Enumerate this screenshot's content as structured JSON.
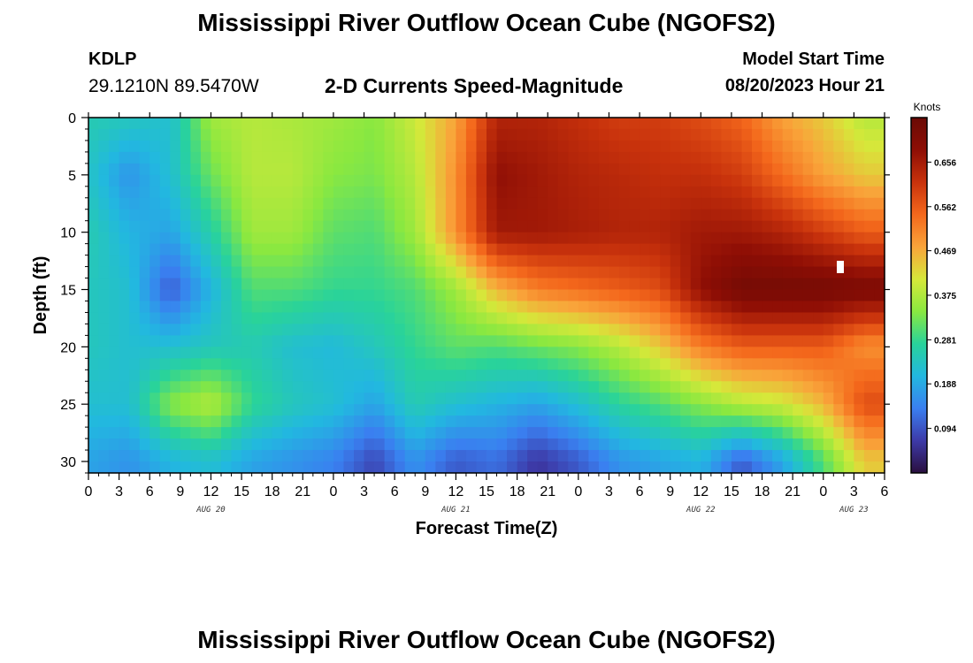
{
  "header": {
    "title": "Mississippi River Outflow Ocean Cube (NGOFS2)",
    "station_id": "KDLP",
    "station_coords": "29.1210N  89.5470W",
    "product": "2-D Currents Speed-Magnitude",
    "model_start_label": "Model Start Time",
    "model_start_value": "08/20/2023 Hour 21"
  },
  "footer": {
    "title": "Mississippi River Outflow Ocean Cube (NGOFS2)"
  },
  "chart_data": {
    "type": "heatmap",
    "xlabel": "Forecast Time(Z)",
    "ylabel": "Depth (ft)",
    "x_tick_labels": [
      "0",
      "3",
      "6",
      "9",
      "12",
      "15",
      "18",
      "21",
      "0",
      "3",
      "6",
      "9",
      "12",
      "15",
      "18",
      "21",
      "0",
      "3",
      "6",
      "9",
      "12",
      "15",
      "18",
      "21",
      "0",
      "3",
      "6"
    ],
    "x_range_hours": [
      0,
      78
    ],
    "x_date_labels": [
      {
        "label": "AUG 20",
        "hour": 12
      },
      {
        "label": "AUG 21",
        "hour": 36
      },
      {
        "label": "AUG 22",
        "hour": 60
      },
      {
        "label": "AUG 23",
        "hour": 75
      }
    ],
    "y_ticks": [
      0,
      5,
      10,
      15,
      20,
      25,
      30
    ],
    "y_range": [
      0,
      31
    ],
    "y_inverted": true,
    "colorbar": {
      "unit": "Knots",
      "ticks": [
        "0.656",
        "0.562",
        "0.469",
        "0.375",
        "0.281",
        "0.188",
        "0.094"
      ],
      "range": [
        0.0,
        0.75
      ],
      "colors": [
        "#2a0f3f",
        "#3d3aa8",
        "#3a7ff0",
        "#22b8e0",
        "#29d39a",
        "#8ae840",
        "#d6e83a",
        "#f9a43a",
        "#f4681c",
        "#c8320c",
        "#8e0e05",
        "#6a0a05"
      ]
    },
    "grid": false,
    "speed_knots": {
      "hours": [
        0,
        4,
        8,
        12,
        16,
        20,
        24,
        28,
        32,
        36,
        40,
        44,
        48,
        52,
        56,
        60,
        64,
        68,
        72,
        76
      ],
      "depths_ft": [
        0,
        5,
        10,
        15,
        20,
        25,
        30
      ],
      "values": [
        [
          0.25,
          0.24,
          0.22,
          0.36,
          0.38,
          0.37,
          0.36,
          0.34,
          0.4,
          0.48,
          0.64,
          0.64,
          0.62,
          0.6,
          0.6,
          0.58,
          0.55,
          0.48,
          0.44,
          0.38
        ],
        [
          0.23,
          0.16,
          0.22,
          0.32,
          0.38,
          0.38,
          0.34,
          0.33,
          0.38,
          0.5,
          0.68,
          0.66,
          0.64,
          0.63,
          0.62,
          0.62,
          0.6,
          0.54,
          0.48,
          0.44
        ],
        [
          0.25,
          0.2,
          0.18,
          0.26,
          0.36,
          0.36,
          0.31,
          0.3,
          0.36,
          0.5,
          0.66,
          0.66,
          0.65,
          0.64,
          0.64,
          0.66,
          0.66,
          0.64,
          0.6,
          0.56
        ],
        [
          0.24,
          0.22,
          0.1,
          0.2,
          0.3,
          0.3,
          0.28,
          0.28,
          0.3,
          0.36,
          0.46,
          0.52,
          0.54,
          0.56,
          0.58,
          0.68,
          0.73,
          0.73,
          0.73,
          0.72
        ],
        [
          0.24,
          0.22,
          0.22,
          0.24,
          0.25,
          0.22,
          0.21,
          0.24,
          0.28,
          0.31,
          0.3,
          0.32,
          0.34,
          0.38,
          0.44,
          0.52,
          0.56,
          0.56,
          0.56,
          0.5
        ],
        [
          0.22,
          0.22,
          0.34,
          0.38,
          0.28,
          0.24,
          0.22,
          0.18,
          0.25,
          0.22,
          0.2,
          0.18,
          0.22,
          0.27,
          0.3,
          0.34,
          0.38,
          0.4,
          0.46,
          0.58
        ],
        [
          0.18,
          0.16,
          0.2,
          0.22,
          0.18,
          0.16,
          0.14,
          0.08,
          0.16,
          0.1,
          0.12,
          0.06,
          0.1,
          0.16,
          0.18,
          0.2,
          0.1,
          0.18,
          0.3,
          0.44
        ]
      ]
    }
  }
}
